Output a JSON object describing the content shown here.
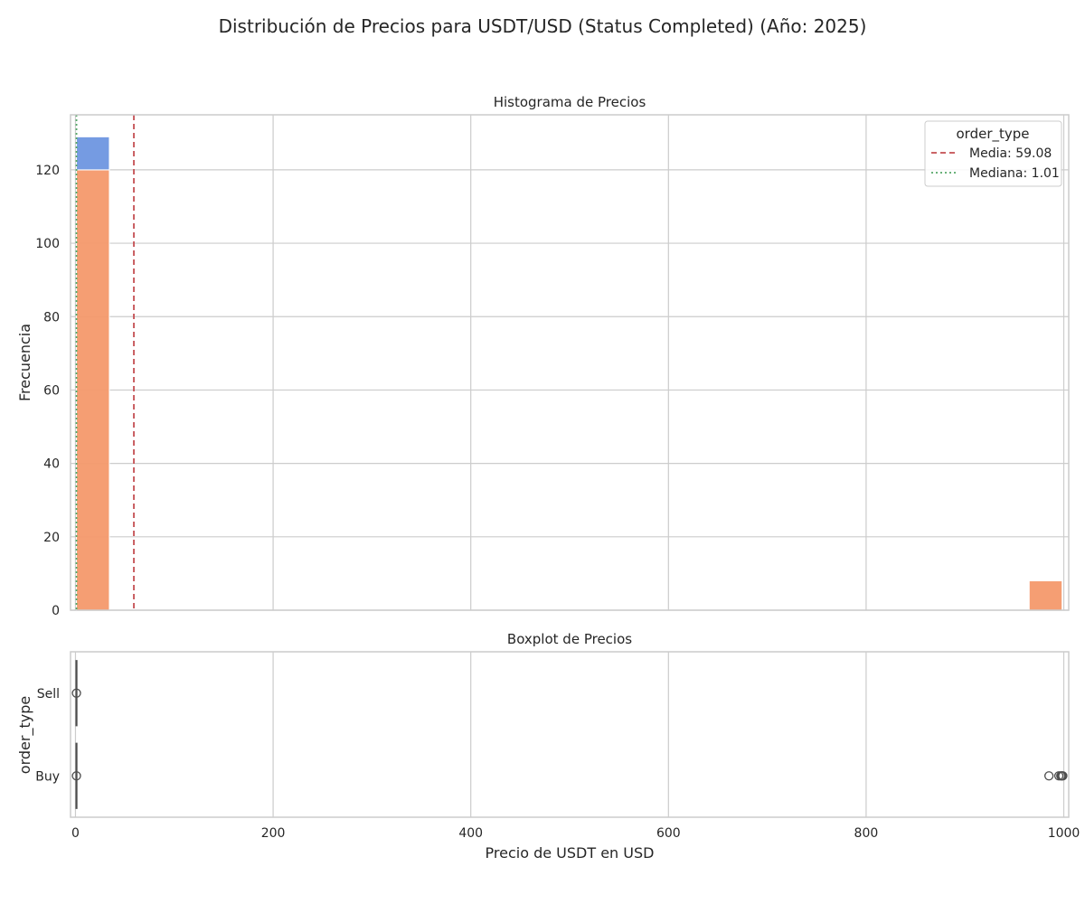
{
  "suptitle": "Distribución de Precios para USDT/USD (Status Completed) (Año: 2025)",
  "colors": {
    "sell": "#6e96e0",
    "buy": "#f4996b",
    "mean_line": "#c44e52",
    "median_line": "#55a868",
    "grid": "#cccccc",
    "box_line": "#4d4d4d"
  },
  "chart_data": [
    {
      "type": "histogram",
      "title": "Histograma de Precios",
      "xlabel": "",
      "ylabel": "Frecuencia",
      "xlim": [
        -5,
        1005
      ],
      "ylim": [
        0,
        135
      ],
      "xticks": [
        0,
        200,
        400,
        600,
        800,
        1000
      ],
      "yticks": [
        0,
        20,
        40,
        60,
        80,
        100,
        120
      ],
      "grid": true,
      "stacked": true,
      "legend": {
        "title": "order_type",
        "position": "top-right",
        "entries": [
          "Media: 59.08",
          "Mediana: 1.01"
        ]
      },
      "series": [
        {
          "key": "buy",
          "bins": [
            {
              "x0": 1,
              "x1": 34.3,
              "count": 120
            },
            {
              "x0": 965,
              "x1": 998.3,
              "count": 8
            }
          ]
        },
        {
          "key": "sell",
          "bins": [
            {
              "x0": 1,
              "x1": 34.3,
              "count": 9
            }
          ]
        }
      ],
      "reference_lines": [
        {
          "kind": "mean",
          "x": 59.08,
          "style": "dashed"
        },
        {
          "kind": "median",
          "x": 1.01,
          "style": "dotted"
        }
      ]
    },
    {
      "type": "boxplot",
      "title": "Boxplot de Precios",
      "xlabel": "Precio de USDT en USD",
      "ylabel": "order_type",
      "xlim": [
        -5,
        1005
      ],
      "xticks": [
        0,
        200,
        400,
        600,
        800,
        1000
      ],
      "categories": [
        "Sell",
        "Buy"
      ],
      "boxes": [
        {
          "category": "Sell",
          "median": 1.01,
          "outliers": [
            1.0
          ]
        },
        {
          "category": "Buy",
          "median": 1.01,
          "outliers": [
            1.0,
            985,
            995,
            997,
            998,
            999
          ]
        }
      ]
    }
  ]
}
